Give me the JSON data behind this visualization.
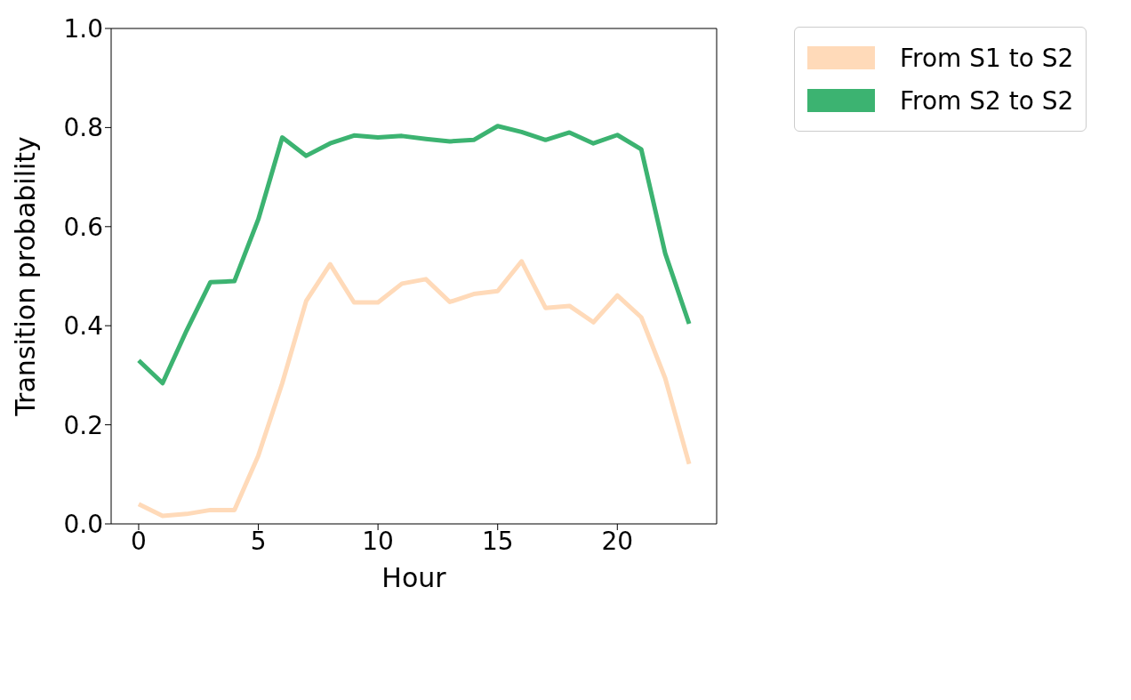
{
  "chart_data": {
    "type": "line",
    "xlabel": "Hour",
    "ylabel": "Transition probability",
    "x": [
      0,
      1,
      2,
      3,
      4,
      5,
      6,
      7,
      8,
      9,
      10,
      11,
      12,
      13,
      14,
      15,
      16,
      17,
      18,
      19,
      20,
      21,
      22,
      23
    ],
    "series": [
      {
        "name": "From S1 to S2",
        "color": "#ffdab9",
        "values": [
          0.04,
          0.016,
          0.02,
          0.028,
          0.028,
          0.138,
          0.284,
          0.45,
          0.524,
          0.447,
          0.447,
          0.485,
          0.494,
          0.448,
          0.464,
          0.47,
          0.53,
          0.436,
          0.44,
          0.407,
          0.461,
          0.417,
          0.294,
          0.121
        ]
      },
      {
        "name": "From S2 to S2",
        "color": "#3cb371",
        "values": [
          0.33,
          0.284,
          0.39,
          0.488,
          0.49,
          0.615,
          0.78,
          0.743,
          0.768,
          0.784,
          0.78,
          0.783,
          0.777,
          0.772,
          0.775,
          0.803,
          0.791,
          0.775,
          0.79,
          0.768,
          0.785,
          0.756,
          0.546,
          0.404
        ]
      }
    ],
    "xlim": [
      -1.15,
      24.15
    ],
    "xticks": [
      0,
      5,
      10,
      15,
      20
    ],
    "ylim": [
      0,
      1
    ],
    "yticks": [
      {
        "value": 0,
        "label": "0.0"
      },
      0.2,
      0.4,
      0.6,
      0.8,
      {
        "value": 1,
        "label": "1.0"
      }
    ],
    "grid": false,
    "legend": "right",
    "marker": "none",
    "line_style": "solid"
  }
}
